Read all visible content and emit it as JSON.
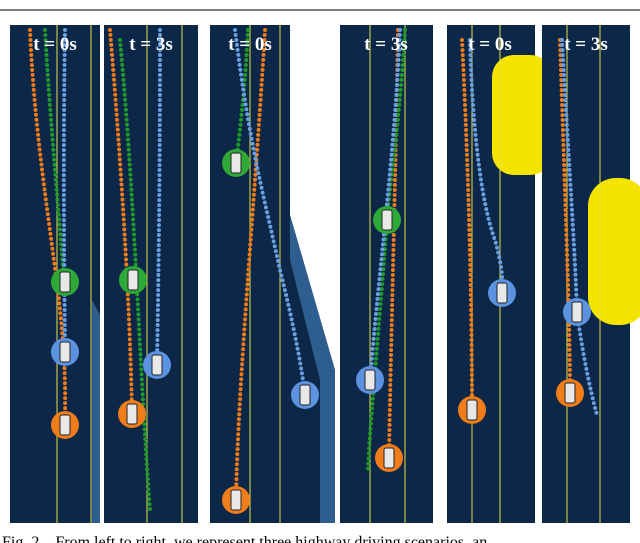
{
  "panels": [
    {
      "label": "t = 0s"
    },
    {
      "label": "t = 3s"
    },
    {
      "label": "t = 0s"
    },
    {
      "label": "t = 3s"
    },
    {
      "label": "t = 0s"
    },
    {
      "label": "t = 3s"
    }
  ],
  "caption": "Fig. 2.   From left to right, we represent three highway driving scenarios, an"
}
